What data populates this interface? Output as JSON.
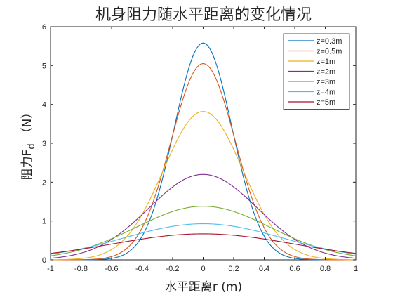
{
  "chart_data": {
    "type": "line",
    "title": "机身阻力随水平距离的变化情况",
    "xlabel": "水平距离r (m)",
    "ylabel_main": "阻力F",
    "ylabel_sub": "d",
    "ylabel_unit": "（N）",
    "xlim": [
      -1,
      1
    ],
    "ylim": [
      0,
      6
    ],
    "xticks": [
      "-1",
      "-0.8",
      "-0.6",
      "-0.4",
      "-0.2",
      "0",
      "0.2",
      "0.4",
      "0.6",
      "0.8",
      "1"
    ],
    "yticks": [
      "0",
      "1",
      "2",
      "3",
      "4",
      "5",
      "6"
    ],
    "grid": false,
    "legend_position": "top-right",
    "series": [
      {
        "name": "z=0.3m",
        "color": "#0072BD",
        "peak": 5.58,
        "sigma": 0.19
      },
      {
        "name": "z=0.5m",
        "color": "#D95319",
        "peak": 5.05,
        "sigma": 0.21
      },
      {
        "name": "z=1m",
        "color": "#EDB120",
        "peak": 3.82,
        "sigma": 0.26
      },
      {
        "name": "z=2m",
        "color": "#7E2F8E",
        "peak": 2.2,
        "sigma": 0.355
      },
      {
        "name": "z=3m",
        "color": "#77AC30",
        "peak": 1.38,
        "sigma": 0.44
      },
      {
        "name": "z=4m",
        "color": "#4DBEEE",
        "peak": 0.93,
        "sigma": 0.52
      },
      {
        "name": "z=5m",
        "color": "#A2142F",
        "peak": 0.67,
        "sigma": 0.6
      }
    ]
  }
}
